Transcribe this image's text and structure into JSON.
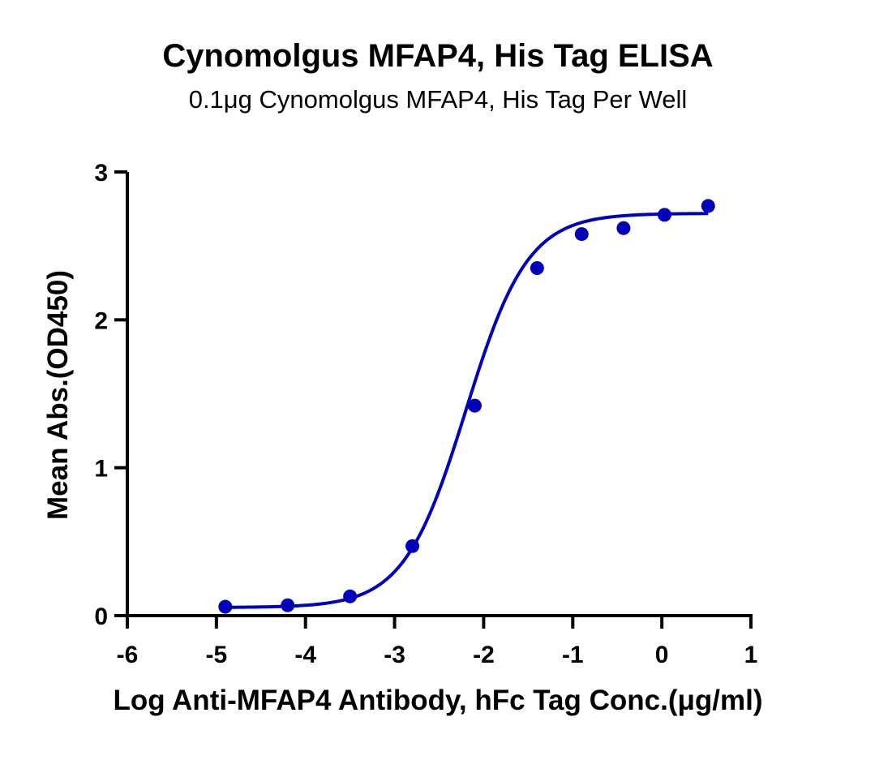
{
  "chart_data": {
    "type": "scatter",
    "title": "Cynomolgus MFAP4, His Tag ELISA",
    "subtitle": "0.1μg Cynomolgus MFAP4, His Tag Per Well",
    "xlabel": "Log Anti-MFAP4 Antibody, hFc Tag Conc.(μg/ml)",
    "ylabel": "Mean Abs.(OD450)",
    "xlim": [
      -6,
      1
    ],
    "ylim": [
      0,
      3
    ],
    "x_ticks": [
      -6,
      -5,
      -4,
      -3,
      -2,
      -1,
      0,
      1
    ],
    "y_ticks": [
      0,
      1,
      2,
      3
    ],
    "grid": false,
    "legend": "none",
    "series": [
      {
        "points": [
          {
            "x": -4.9,
            "y": 0.06
          },
          {
            "x": -4.2,
            "y": 0.07
          },
          {
            "x": -3.5,
            "y": 0.13
          },
          {
            "x": -2.8,
            "y": 0.47
          },
          {
            "x": -2.1,
            "y": 1.42
          },
          {
            "x": -1.4,
            "y": 2.35
          },
          {
            "x": -0.9,
            "y": 2.58
          },
          {
            "x": -0.43,
            "y": 2.62
          },
          {
            "x": 0.03,
            "y": 2.71
          },
          {
            "x": 0.52,
            "y": 2.77
          }
        ],
        "fit": {
          "model": "4PL",
          "bottom": 0.055,
          "top": 2.72,
          "log_ec50": -2.2,
          "hill_slope": 1.25,
          "x_range": [
            -4.9,
            0.52
          ]
        },
        "color": "#0000BB"
      }
    ]
  }
}
